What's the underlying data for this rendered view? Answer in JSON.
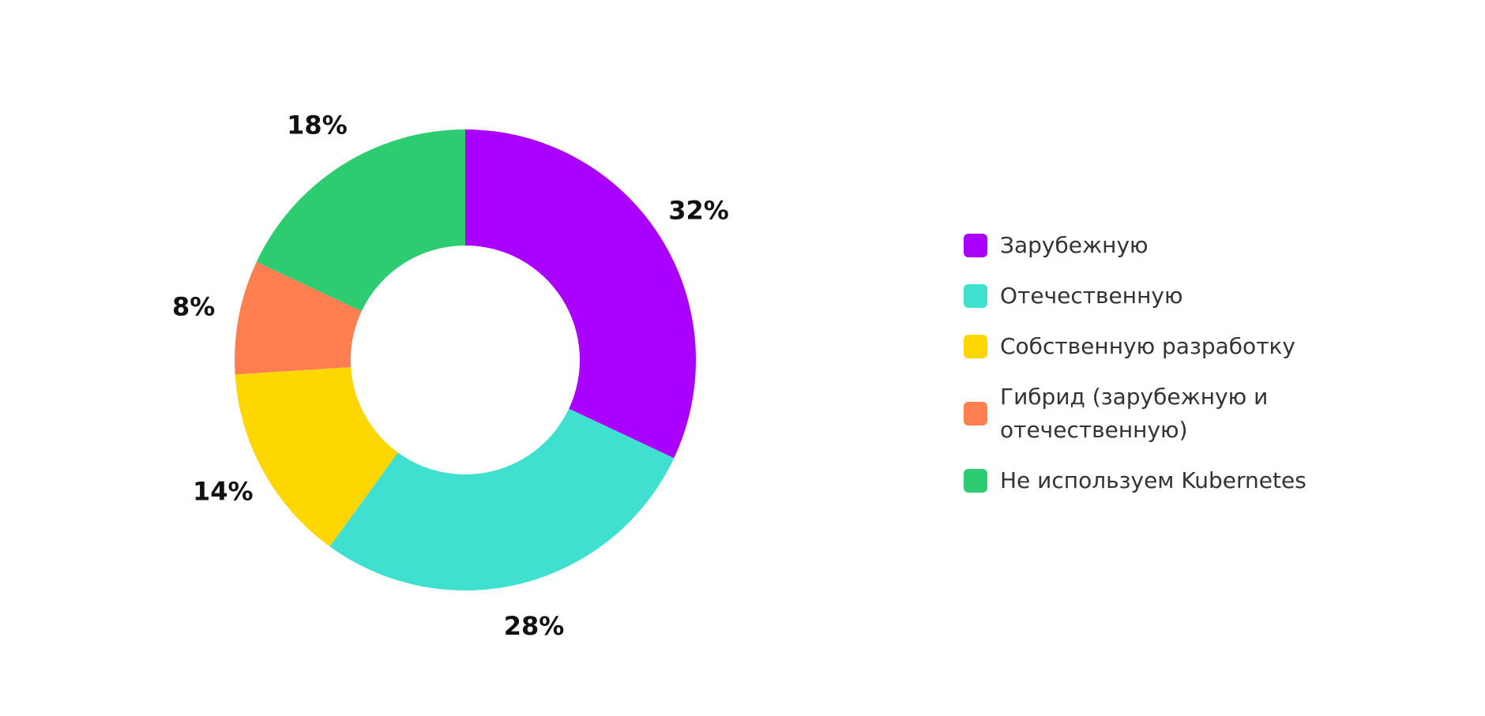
{
  "chart_data": {
    "type": "donut",
    "categories": [
      "Зарубежную",
      "Отечественную",
      "Собственную разработку",
      "Гибрид (зарубежную и отечественную)",
      "Не используем Kubernetes"
    ],
    "values": [
      32,
      28,
      14,
      8,
      18
    ],
    "value_labels": [
      "32%",
      "28%",
      "14%",
      "8%",
      "18%"
    ],
    "colors": [
      "#aa00ff",
      "#40e0d0",
      "#ffd700",
      "#ff7f50",
      "#2ecc71"
    ],
    "legend": "right"
  }
}
